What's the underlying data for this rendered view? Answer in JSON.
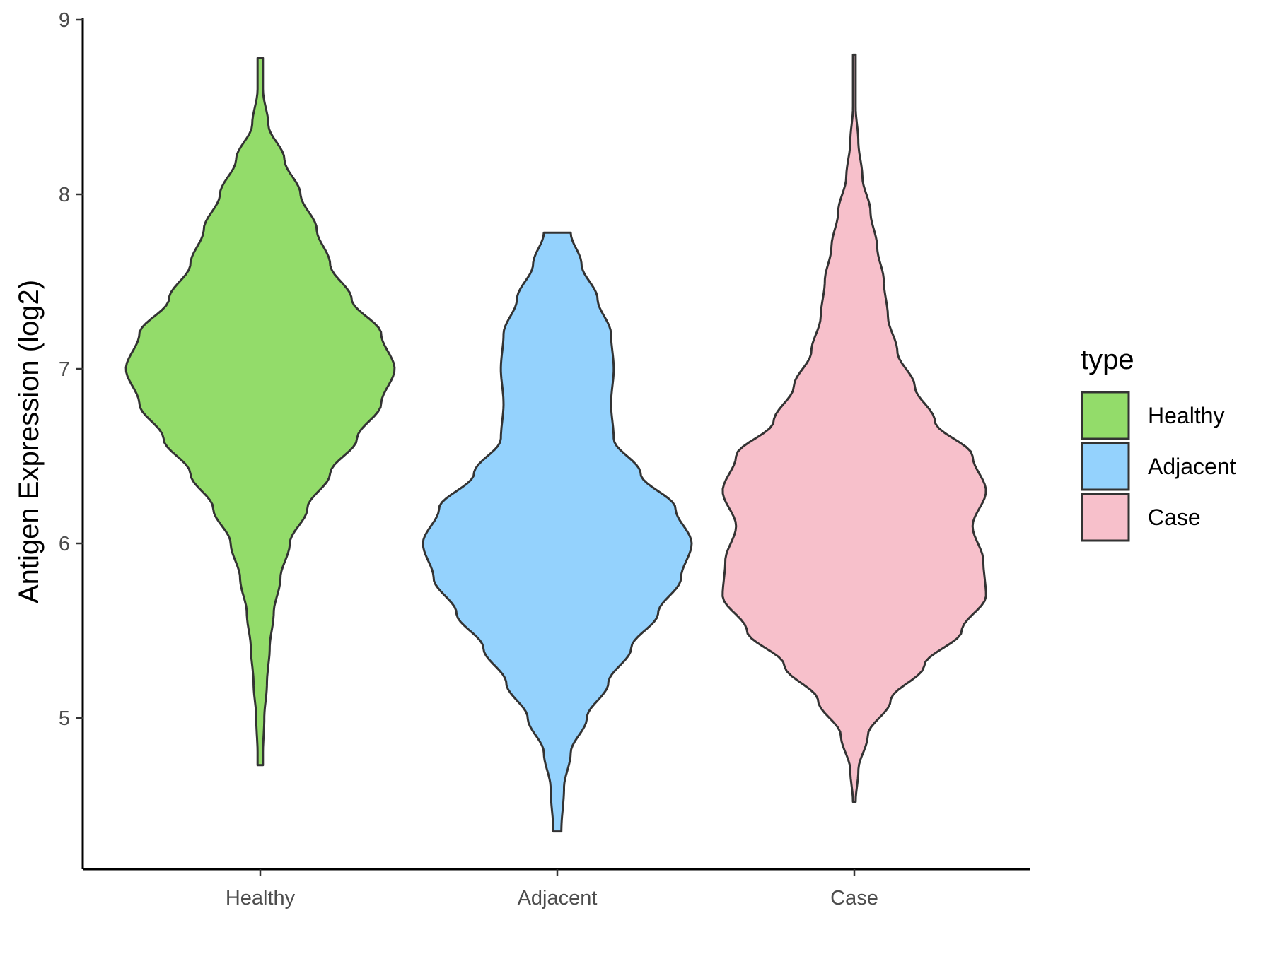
{
  "chart_data": {
    "type": "violin",
    "title": "",
    "xlabel": "",
    "ylabel": "Antigen Expression (log2)",
    "ylim": [
      4.2,
      9.0
    ],
    "y_ticks": [
      "5",
      "6",
      "7",
      "8",
      "9"
    ],
    "y_tick_values": [
      5,
      6,
      7,
      8,
      9
    ],
    "categories": [
      "Healthy",
      "Adjacent",
      "Case"
    ],
    "grid": false,
    "legend": {
      "title": "type",
      "position": "right",
      "entries": [
        "Healthy",
        "Adjacent",
        "Case"
      ]
    },
    "series": [
      {
        "name": "Healthy",
        "color": "#93dc6a",
        "min": 4.73,
        "max": 8.78,
        "profile": [
          [
            4.73,
            0.02
          ],
          [
            4.8,
            0.02
          ],
          [
            5.0,
            0.03
          ],
          [
            5.2,
            0.05
          ],
          [
            5.4,
            0.07
          ],
          [
            5.6,
            0.1
          ],
          [
            5.8,
            0.15
          ],
          [
            6.0,
            0.22
          ],
          [
            6.2,
            0.35
          ],
          [
            6.4,
            0.52
          ],
          [
            6.6,
            0.72
          ],
          [
            6.8,
            0.9
          ],
          [
            7.0,
            1.0
          ],
          [
            7.2,
            0.9
          ],
          [
            7.4,
            0.68
          ],
          [
            7.6,
            0.52
          ],
          [
            7.8,
            0.42
          ],
          [
            8.0,
            0.3
          ],
          [
            8.2,
            0.18
          ],
          [
            8.4,
            0.06
          ],
          [
            8.6,
            0.02
          ],
          [
            8.78,
            0.02
          ]
        ]
      },
      {
        "name": "Adjacent",
        "color": "#94d2fd",
        "min": 4.35,
        "max": 7.78,
        "profile": [
          [
            4.35,
            0.03
          ],
          [
            4.6,
            0.05
          ],
          [
            4.8,
            0.1
          ],
          [
            5.0,
            0.22
          ],
          [
            5.2,
            0.38
          ],
          [
            5.4,
            0.55
          ],
          [
            5.6,
            0.75
          ],
          [
            5.8,
            0.92
          ],
          [
            6.0,
            1.0
          ],
          [
            6.2,
            0.88
          ],
          [
            6.4,
            0.62
          ],
          [
            6.6,
            0.42
          ],
          [
            6.8,
            0.4
          ],
          [
            7.0,
            0.42
          ],
          [
            7.2,
            0.4
          ],
          [
            7.4,
            0.3
          ],
          [
            7.6,
            0.18
          ],
          [
            7.78,
            0.1
          ]
        ]
      },
      {
        "name": "Case",
        "color": "#f7c0cb",
        "min": 4.52,
        "max": 8.8,
        "profile": [
          [
            4.52,
            0.01
          ],
          [
            4.7,
            0.03
          ],
          [
            4.9,
            0.1
          ],
          [
            5.1,
            0.27
          ],
          [
            5.3,
            0.52
          ],
          [
            5.5,
            0.8
          ],
          [
            5.7,
            0.98
          ],
          [
            5.9,
            0.96
          ],
          [
            6.1,
            0.88
          ],
          [
            6.3,
            0.98
          ],
          [
            6.5,
            0.88
          ],
          [
            6.7,
            0.6
          ],
          [
            6.9,
            0.45
          ],
          [
            7.1,
            0.32
          ],
          [
            7.3,
            0.25
          ],
          [
            7.5,
            0.22
          ],
          [
            7.7,
            0.17
          ],
          [
            7.9,
            0.12
          ],
          [
            8.1,
            0.06
          ],
          [
            8.3,
            0.03
          ],
          [
            8.5,
            0.01
          ],
          [
            8.8,
            0.01
          ]
        ]
      }
    ]
  }
}
